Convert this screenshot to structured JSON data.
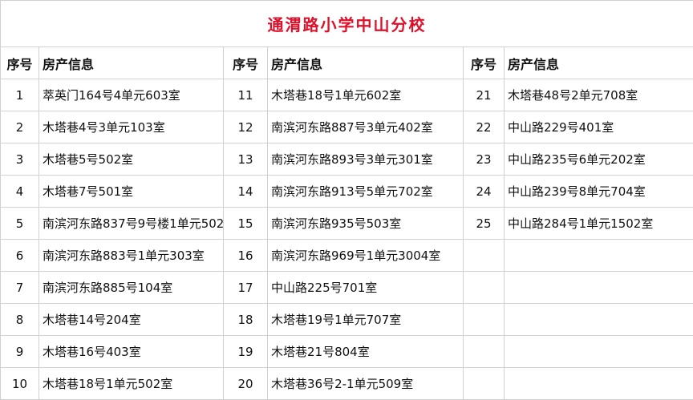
{
  "title": "通渭路小学中山分校",
  "headers": {
    "num": "序号",
    "info": "房产信息"
  },
  "columns": [
    [
      {
        "num": "1",
        "info": "萃英门164号4单元603室"
      },
      {
        "num": "2",
        "info": "木塔巷4号3单元103室"
      },
      {
        "num": "3",
        "info": "木塔巷5号502室"
      },
      {
        "num": "4",
        "info": "木塔巷7号501室"
      },
      {
        "num": "5",
        "info": "南滨河东路837号9号楼1单元502"
      },
      {
        "num": "6",
        "info": "南滨河东路883号1单元303室"
      },
      {
        "num": "7",
        "info": "南滨河东路885号104室"
      },
      {
        "num": "8",
        "info": "木塔巷14号204室"
      },
      {
        "num": "9",
        "info": "木塔巷16号403室"
      },
      {
        "num": "10",
        "info": "木塔巷18号1单元502室"
      }
    ],
    [
      {
        "num": "11",
        "info": "木塔巷18号1单元602室"
      },
      {
        "num": "12",
        "info": "南滨河东路887号3单元402室"
      },
      {
        "num": "13",
        "info": "南滨河东路893号3单元301室"
      },
      {
        "num": "14",
        "info": "南滨河东路913号5单元702室"
      },
      {
        "num": "15",
        "info": "南滨河东路935号503室"
      },
      {
        "num": "16",
        "info": "南滨河东路969号1单元3004室"
      },
      {
        "num": "17",
        "info": "中山路225号701室"
      },
      {
        "num": "18",
        "info": "木塔巷19号1单元707室"
      },
      {
        "num": "19",
        "info": "木塔巷21号804室"
      },
      {
        "num": "20",
        "info": "木塔巷36号2-1单元509室"
      }
    ],
    [
      {
        "num": "21",
        "info": "木塔巷48号2单元708室"
      },
      {
        "num": "22",
        "info": "中山路229号401室"
      },
      {
        "num": "23",
        "info": "中山路235号6单元202室"
      },
      {
        "num": "24",
        "info": "中山路239号8单元704室"
      },
      {
        "num": "25",
        "info": "中山路284号1单元1502室"
      },
      {
        "num": "",
        "info": ""
      },
      {
        "num": "",
        "info": ""
      },
      {
        "num": "",
        "info": ""
      },
      {
        "num": "",
        "info": ""
      },
      {
        "num": "",
        "info": ""
      }
    ]
  ]
}
